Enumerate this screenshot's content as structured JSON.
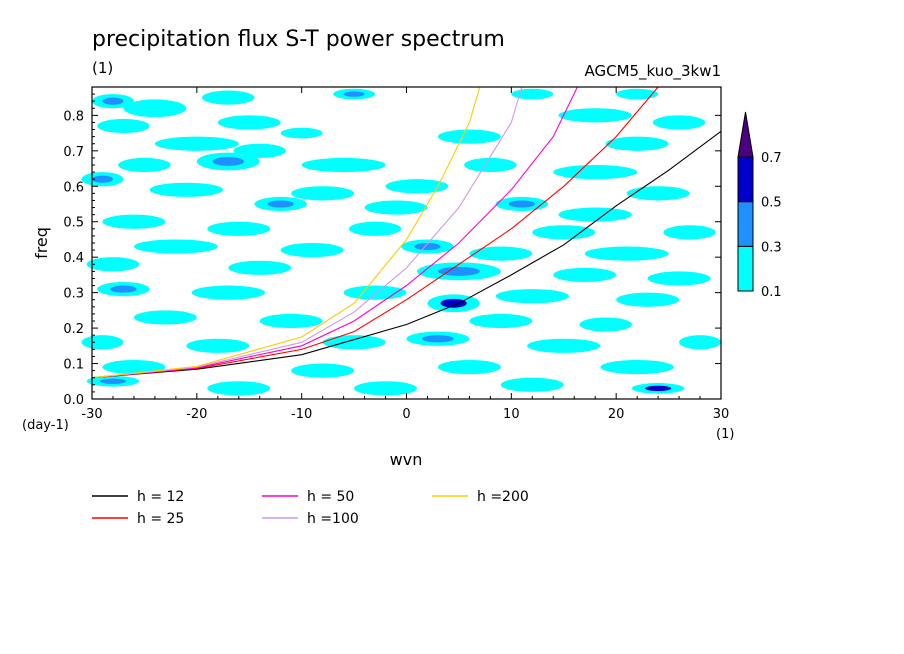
{
  "chart_data": {
    "type": "contour",
    "title": "precipitation flux S-T power spectrum",
    "subtitle_left": "(1)",
    "subtitle_right": "AGCM5_kuo_3kw1",
    "xlabel": "wvn",
    "ylabel": "freq",
    "x_unit": "(1)",
    "y_unit": "(day-1)",
    "xlim": [
      -30,
      30
    ],
    "ylim": [
      0,
      0.88
    ],
    "x_ticks": [
      -30,
      -20,
      -10,
      0,
      10,
      20,
      30
    ],
    "x_tick_labels": [
      "-30",
      "-20",
      "-10",
      "0",
      "10",
      "20",
      "30"
    ],
    "y_ticks": [
      0,
      0.1,
      0.2,
      0.3,
      0.4,
      0.5,
      0.6,
      0.7,
      0.8
    ],
    "y_tick_labels": [
      "0.0",
      "0.1",
      "0.2",
      "0.3",
      "0.4",
      "0.5",
      "0.6",
      "0.7",
      "0.8"
    ],
    "colorbar": {
      "levels": [
        "0.1",
        "0.3",
        "0.5",
        "0.7"
      ],
      "colors": [
        "#00ffff",
        "#1e90ff",
        "#0000cd",
        "#4b0082"
      ]
    },
    "contour_blobs": [
      {
        "x": -28,
        "y": 0.84,
        "w": 2.0,
        "h": 0.02,
        "level": 1
      },
      {
        "x": -24,
        "y": 0.82,
        "w": 3.0,
        "h": 0.025,
        "level": 0
      },
      {
        "x": -17,
        "y": 0.85,
        "w": 2.5,
        "h": 0.02,
        "level": 0
      },
      {
        "x": -5,
        "y": 0.86,
        "w": 2.0,
        "h": 0.015,
        "level": 1
      },
      {
        "x": 12,
        "y": 0.86,
        "w": 2.0,
        "h": 0.015,
        "level": 0
      },
      {
        "x": 22,
        "y": 0.86,
        "w": 2.0,
        "h": 0.015,
        "level": 0
      },
      {
        "x": -27,
        "y": 0.77,
        "w": 2.5,
        "h": 0.02,
        "level": 0
      },
      {
        "x": -15,
        "y": 0.78,
        "w": 3.0,
        "h": 0.02,
        "level": 0
      },
      {
        "x": 18,
        "y": 0.8,
        "w": 3.5,
        "h": 0.02,
        "level": 0
      },
      {
        "x": 26,
        "y": 0.78,
        "w": 2.5,
        "h": 0.02,
        "level": 0
      },
      {
        "x": -20,
        "y": 0.72,
        "w": 4.0,
        "h": 0.02,
        "level": 0
      },
      {
        "x": -14,
        "y": 0.7,
        "w": 2.5,
        "h": 0.02,
        "level": 0
      },
      {
        "x": -10,
        "y": 0.75,
        "w": 2.0,
        "h": 0.015,
        "level": 0
      },
      {
        "x": 6,
        "y": 0.74,
        "w": 3.0,
        "h": 0.02,
        "level": 0
      },
      {
        "x": 22,
        "y": 0.72,
        "w": 3.0,
        "h": 0.02,
        "level": 0
      },
      {
        "x": -17,
        "y": 0.67,
        "w": 3.0,
        "h": 0.025,
        "level": 1
      },
      {
        "x": -25,
        "y": 0.66,
        "w": 2.5,
        "h": 0.02,
        "level": 0
      },
      {
        "x": -6,
        "y": 0.66,
        "w": 4.0,
        "h": 0.02,
        "level": 0
      },
      {
        "x": 8,
        "y": 0.66,
        "w": 2.5,
        "h": 0.02,
        "level": 0
      },
      {
        "x": 18,
        "y": 0.64,
        "w": 4.0,
        "h": 0.02,
        "level": 0
      },
      {
        "x": -29,
        "y": 0.62,
        "w": 2.0,
        "h": 0.02,
        "level": 1
      },
      {
        "x": -21,
        "y": 0.59,
        "w": 3.5,
        "h": 0.02,
        "level": 0
      },
      {
        "x": -8,
        "y": 0.58,
        "w": 3.0,
        "h": 0.02,
        "level": 0
      },
      {
        "x": 1,
        "y": 0.6,
        "w": 3.0,
        "h": 0.02,
        "level": 0
      },
      {
        "x": 24,
        "y": 0.58,
        "w": 3.0,
        "h": 0.02,
        "level": 0
      },
      {
        "x": -12,
        "y": 0.55,
        "w": 2.5,
        "h": 0.02,
        "level": 1
      },
      {
        "x": -1,
        "y": 0.54,
        "w": 3.0,
        "h": 0.02,
        "level": 0
      },
      {
        "x": 11,
        "y": 0.55,
        "w": 2.5,
        "h": 0.02,
        "level": 1
      },
      {
        "x": 18,
        "y": 0.52,
        "w": 3.5,
        "h": 0.02,
        "level": 0
      },
      {
        "x": -26,
        "y": 0.5,
        "w": 3.0,
        "h": 0.02,
        "level": 0
      },
      {
        "x": -16,
        "y": 0.48,
        "w": 3.0,
        "h": 0.02,
        "level": 0
      },
      {
        "x": -3,
        "y": 0.48,
        "w": 2.5,
        "h": 0.02,
        "level": 0
      },
      {
        "x": 15,
        "y": 0.47,
        "w": 3.0,
        "h": 0.02,
        "level": 0
      },
      {
        "x": 27,
        "y": 0.47,
        "w": 2.5,
        "h": 0.02,
        "level": 0
      },
      {
        "x": -22,
        "y": 0.43,
        "w": 4.0,
        "h": 0.02,
        "level": 0
      },
      {
        "x": -9,
        "y": 0.42,
        "w": 3.0,
        "h": 0.02,
        "level": 0
      },
      {
        "x": 2,
        "y": 0.43,
        "w": 2.5,
        "h": 0.02,
        "level": 1
      },
      {
        "x": 9,
        "y": 0.41,
        "w": 3.0,
        "h": 0.02,
        "level": 0
      },
      {
        "x": 21,
        "y": 0.41,
        "w": 4.0,
        "h": 0.02,
        "level": 0
      },
      {
        "x": -28,
        "y": 0.38,
        "w": 2.5,
        "h": 0.02,
        "level": 0
      },
      {
        "x": -14,
        "y": 0.37,
        "w": 3.0,
        "h": 0.02,
        "level": 0
      },
      {
        "x": 5,
        "y": 0.36,
        "w": 4.0,
        "h": 0.025,
        "level": 1
      },
      {
        "x": 17,
        "y": 0.35,
        "w": 3.0,
        "h": 0.02,
        "level": 0
      },
      {
        "x": 26,
        "y": 0.34,
        "w": 3.0,
        "h": 0.02,
        "level": 0
      },
      {
        "x": -27,
        "y": 0.31,
        "w": 2.5,
        "h": 0.02,
        "level": 1
      },
      {
        "x": -17,
        "y": 0.3,
        "w": 3.5,
        "h": 0.02,
        "level": 0
      },
      {
        "x": -3,
        "y": 0.3,
        "w": 3.0,
        "h": 0.02,
        "level": 0
      },
      {
        "x": 12,
        "y": 0.29,
        "w": 3.5,
        "h": 0.02,
        "level": 0
      },
      {
        "x": 4.5,
        "y": 0.27,
        "w": 2.5,
        "h": 0.025,
        "level": 2
      },
      {
        "x": 23,
        "y": 0.28,
        "w": 3.0,
        "h": 0.02,
        "level": 0
      },
      {
        "x": -23,
        "y": 0.23,
        "w": 3.0,
        "h": 0.02,
        "level": 0
      },
      {
        "x": -11,
        "y": 0.22,
        "w": 3.0,
        "h": 0.02,
        "level": 0
      },
      {
        "x": 9,
        "y": 0.22,
        "w": 3.0,
        "h": 0.02,
        "level": 0
      },
      {
        "x": 19,
        "y": 0.21,
        "w": 2.5,
        "h": 0.02,
        "level": 0
      },
      {
        "x": -29,
        "y": 0.16,
        "w": 2.0,
        "h": 0.02,
        "level": 0
      },
      {
        "x": -18,
        "y": 0.15,
        "w": 3.0,
        "h": 0.02,
        "level": 0
      },
      {
        "x": -5,
        "y": 0.16,
        "w": 3.0,
        "h": 0.02,
        "level": 0
      },
      {
        "x": 3,
        "y": 0.17,
        "w": 3.0,
        "h": 0.02,
        "level": 1
      },
      {
        "x": 15,
        "y": 0.15,
        "w": 3.5,
        "h": 0.02,
        "level": 0
      },
      {
        "x": 28,
        "y": 0.16,
        "w": 2.0,
        "h": 0.02,
        "level": 0
      },
      {
        "x": -26,
        "y": 0.09,
        "w": 3.0,
        "h": 0.02,
        "level": 0
      },
      {
        "x": -8,
        "y": 0.08,
        "w": 3.0,
        "h": 0.02,
        "level": 0
      },
      {
        "x": 6,
        "y": 0.09,
        "w": 3.0,
        "h": 0.02,
        "level": 0
      },
      {
        "x": 22,
        "y": 0.09,
        "w": 3.5,
        "h": 0.02,
        "level": 0
      },
      {
        "x": -28,
        "y": 0.05,
        "w": 2.5,
        "h": 0.015,
        "level": 1
      },
      {
        "x": -16,
        "y": 0.03,
        "w": 3.0,
        "h": 0.02,
        "level": 0
      },
      {
        "x": -2,
        "y": 0.03,
        "w": 3.0,
        "h": 0.02,
        "level": 0
      },
      {
        "x": 12,
        "y": 0.04,
        "w": 3.0,
        "h": 0.02,
        "level": 0
      },
      {
        "x": 24,
        "y": 0.03,
        "w": 2.5,
        "h": 0.015,
        "level": 2
      }
    ],
    "series": [
      {
        "name": "h = 12",
        "h": 12,
        "color": "#000000",
        "legend_label": "h = 12",
        "points": [
          [
            -30,
            0.06
          ],
          [
            -20,
            0.084
          ],
          [
            -10,
            0.125
          ],
          [
            0,
            0.21
          ],
          [
            5,
            0.27
          ],
          [
            10,
            0.35
          ],
          [
            15,
            0.435
          ],
          [
            20,
            0.545
          ],
          [
            25,
            0.645
          ],
          [
            30,
            0.755
          ]
        ]
      },
      {
        "name": "h = 25",
        "h": 25,
        "color": "#ff0000",
        "legend_label": "h = 25",
        "points": [
          [
            -30,
            0.06
          ],
          [
            -20,
            0.086
          ],
          [
            -10,
            0.14
          ],
          [
            -5,
            0.19
          ],
          [
            0,
            0.28
          ],
          [
            5,
            0.38
          ],
          [
            10,
            0.48
          ],
          [
            15,
            0.6
          ],
          [
            20,
            0.74
          ],
          [
            24,
            0.88
          ]
        ]
      },
      {
        "name": "h = 50",
        "h": 50,
        "color": "#ff00cc",
        "legend_label": "h = 50",
        "points": [
          [
            -30,
            0.06
          ],
          [
            -20,
            0.088
          ],
          [
            -10,
            0.15
          ],
          [
            -5,
            0.22
          ],
          [
            0,
            0.32
          ],
          [
            5,
            0.44
          ],
          [
            10,
            0.59
          ],
          [
            14,
            0.74
          ],
          [
            16.3,
            0.88
          ]
        ]
      },
      {
        "name": "h =100",
        "h": 100,
        "color": "#cc99ee",
        "legend_label": "h =100",
        "points": [
          [
            -30,
            0.06
          ],
          [
            -20,
            0.09
          ],
          [
            -10,
            0.16
          ],
          [
            -5,
            0.245
          ],
          [
            0,
            0.37
          ],
          [
            5,
            0.54
          ],
          [
            10,
            0.78
          ],
          [
            11,
            0.88
          ]
        ]
      },
      {
        "name": "h =200",
        "h": 200,
        "color": "#ffcc00",
        "legend_label": "h =200",
        "points": [
          [
            -30,
            0.06
          ],
          [
            -20,
            0.092
          ],
          [
            -10,
            0.175
          ],
          [
            -5,
            0.27
          ],
          [
            0,
            0.45
          ],
          [
            3,
            0.6
          ],
          [
            6,
            0.78
          ],
          [
            7,
            0.88
          ]
        ]
      }
    ]
  }
}
